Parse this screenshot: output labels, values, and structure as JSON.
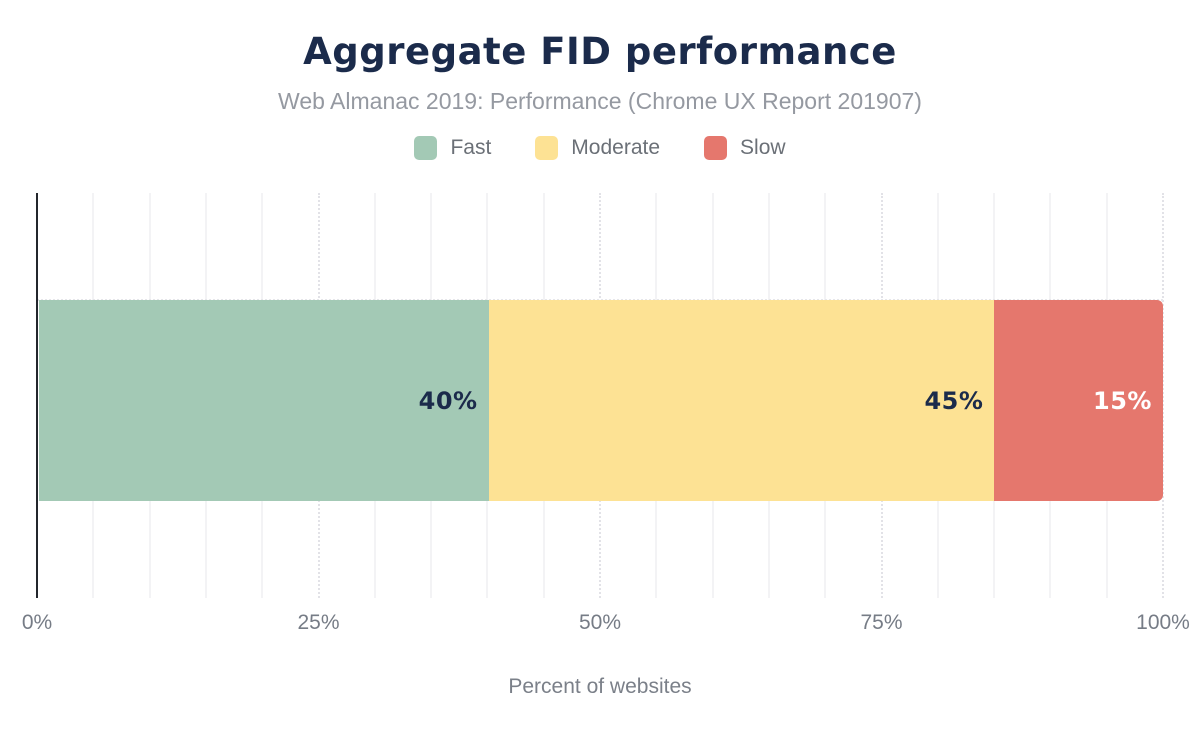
{
  "chart": {
    "title": "Aggregate FID performance",
    "subtitle": "Web Almanac 2019: Performance (Chrome UX Report 201907)",
    "x_axis_label": "Percent of websites"
  },
  "chart_data": {
    "type": "bar",
    "stacked": true,
    "orientation": "horizontal",
    "title": "Aggregate FID performance",
    "subtitle": "Web Almanac 2019: Performance (Chrome UX Report 201907)",
    "xlabel": "Percent of websites",
    "ylabel": "",
    "xlim": [
      0,
      100
    ],
    "xticks": [
      {
        "label": "0%",
        "value": 0
      },
      {
        "label": "25%",
        "value": 25
      },
      {
        "label": "50%",
        "value": 50
      },
      {
        "label": "75%",
        "value": 75
      },
      {
        "label": "100%",
        "value": 100
      }
    ],
    "grid": {
      "vertical_minor_step_percent": 5,
      "vertical_major_step_percent": 25
    },
    "legend_position": "top",
    "categories": [
      ""
    ],
    "series": [
      {
        "name": "Fast",
        "value": 40,
        "label": "40%",
        "color": "#a3c9b5",
        "label_color": "#1b2b4b"
      },
      {
        "name": "Moderate",
        "value": 45,
        "label": "45%",
        "color": "#fde294",
        "label_color": "#1b2b4b"
      },
      {
        "name": "Slow",
        "value": 15,
        "label": "15%",
        "color": "#e5776d",
        "label_color": "#ffffff"
      }
    ]
  },
  "colors": {
    "title_text": "#1b2b4b",
    "subtitle_text": "#9599a1",
    "legend_text": "#6b7077",
    "tick_text": "#767c86",
    "axis_line": "#23262c",
    "grid_minor": "#f3f3f5",
    "grid_major": "#e2e2e7"
  }
}
